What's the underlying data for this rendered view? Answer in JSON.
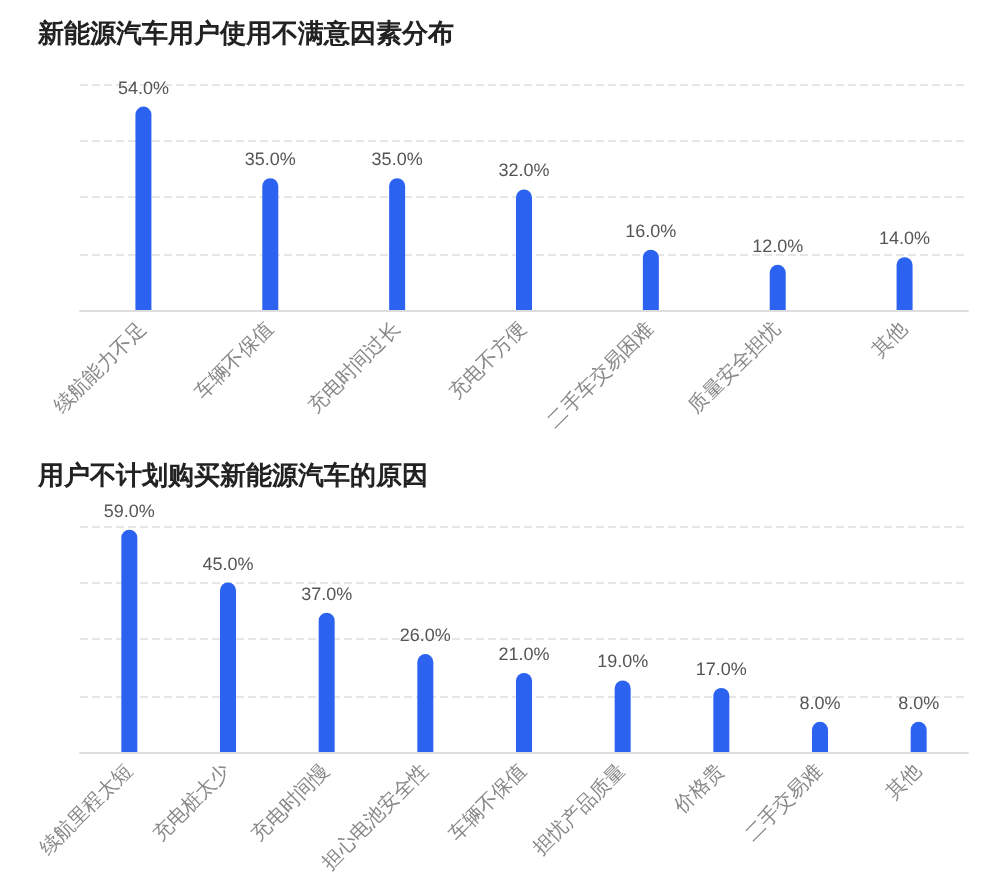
{
  "chart_data": [
    {
      "type": "bar",
      "title": "新能源汽车用户使用不满意因素分布",
      "categories": [
        "续航能力不足",
        "车辆不保值",
        "充电时间过长",
        "充电不方便",
        "二手车交易困难",
        "质量安全担忧",
        "其他"
      ],
      "values": [
        54,
        35,
        35,
        32,
        16,
        12,
        14
      ],
      "value_labels": [
        "54.0%",
        "35.0%",
        "35.0%",
        "32.0%",
        "16.0%",
        "12.0%",
        "14.0%"
      ],
      "color": "#2b62f0",
      "ylim": [
        0,
        60
      ],
      "yticks": [
        {
          "value": 0,
          "label": null
        },
        {
          "value": 15,
          "label": null
        },
        {
          "value": 30,
          "label": null
        },
        {
          "value": 45,
          "label": null
        },
        {
          "value": 60,
          "label": null
        }
      ],
      "tick_labels": "x",
      "grid": "y"
    },
    {
      "type": "bar",
      "title": "用户不计划购买新能源汽车的原因",
      "categories": [
        "续航里程太短",
        "充电桩太少",
        "充电时间慢",
        "担心电池安全性",
        "车辆不保值",
        "担忧产品质量",
        "价格贵",
        "二手交易难",
        "其他"
      ],
      "values": [
        59,
        45,
        37,
        26,
        21,
        19,
        17,
        8,
        8
      ],
      "value_labels": [
        "59.0%",
        "45.0%",
        "37.0%",
        "26.0%",
        "21.0%",
        "19.0%",
        "17.0%",
        "8.0%",
        "8.0%"
      ],
      "color": "#2b62f0",
      "ylim": [
        0,
        60
      ],
      "yticks": [
        {
          "value": 0,
          "label": null
        },
        {
          "value": 15,
          "label": null
        },
        {
          "value": 30,
          "label": null
        },
        {
          "value": 45,
          "label": null
        },
        {
          "value": 60,
          "label": null
        }
      ],
      "tick_labels": "x",
      "grid": "y"
    }
  ]
}
